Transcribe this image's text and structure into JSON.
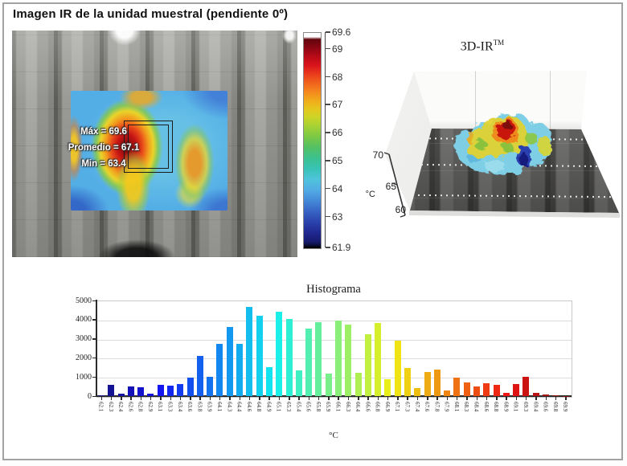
{
  "page_title": "Imagen IR de la unidad muestral (pendiente 0º)",
  "colors": {
    "hot_max": "#8c0f0f",
    "cold_min": "#161b6e",
    "frame_border": "#a2a2a2",
    "axis": "#2a2a2a"
  },
  "ir_image": {
    "annotations": {
      "max": "Máx = 69.6",
      "avg": "Promedio = 67.1",
      "min": "Min = 63.4"
    },
    "colorbar": {
      "tick_labels": [
        "69.6",
        "69",
        "68",
        "67",
        "66",
        "65",
        "64",
        "63",
        "61.9"
      ],
      "min": 61.9,
      "max": 69.6
    }
  },
  "plot3d": {
    "title": "3D-IR",
    "title_sup": "TM",
    "z_ticks": [
      "70",
      "65",
      "60"
    ],
    "z_unit": "°C"
  },
  "chart_data": {
    "type": "bar",
    "title": "Histograma",
    "xlabel": "°C",
    "ylabel": "",
    "ylim": [
      0,
      5000
    ],
    "ytick_labels": [
      "5000",
      "4000",
      "3000",
      "2000",
      "1000",
      "0"
    ],
    "grid": "horizontal",
    "legend": "none",
    "bar_color_scheme": "jet rainbow, blue (cold) to dark red (hot) by temperature",
    "categories": [
      "62.1",
      "62.3",
      "62.4",
      "62.6",
      "62.8",
      "62.9",
      "63.1",
      "63.3",
      "63.4",
      "63.6",
      "63.8",
      "63.9",
      "64.1",
      "64.3",
      "64.4",
      "64.6",
      "64.8",
      "64.9",
      "65.1",
      "65.3",
      "65.4",
      "65.6",
      "65.8",
      "65.9",
      "66.1",
      "66.3",
      "66.4",
      "66.6",
      "66.8",
      "66.9",
      "67.1",
      "67.3",
      "67.4",
      "67.6",
      "67.8",
      "67.9",
      "68.1",
      "68.3",
      "68.4",
      "68.6",
      "68.8",
      "68.9",
      "69.1",
      "69.3",
      "69.4",
      "69.6",
      "69.8",
      "69.9"
    ],
    "values": [
      60,
      600,
      140,
      520,
      450,
      120,
      580,
      540,
      640,
      980,
      2100,
      1000,
      2720,
      3620,
      2720,
      4650,
      4220,
      1520,
      4420,
      4030,
      1350,
      3550,
      3870,
      1180,
      3930,
      3740,
      1230,
      3240,
      3840,
      880,
      2900,
      1450,
      400,
      1250,
      1400,
      280,
      950,
      720,
      500,
      680,
      600,
      170,
      620,
      1000,
      170,
      90,
      30,
      10
    ]
  }
}
